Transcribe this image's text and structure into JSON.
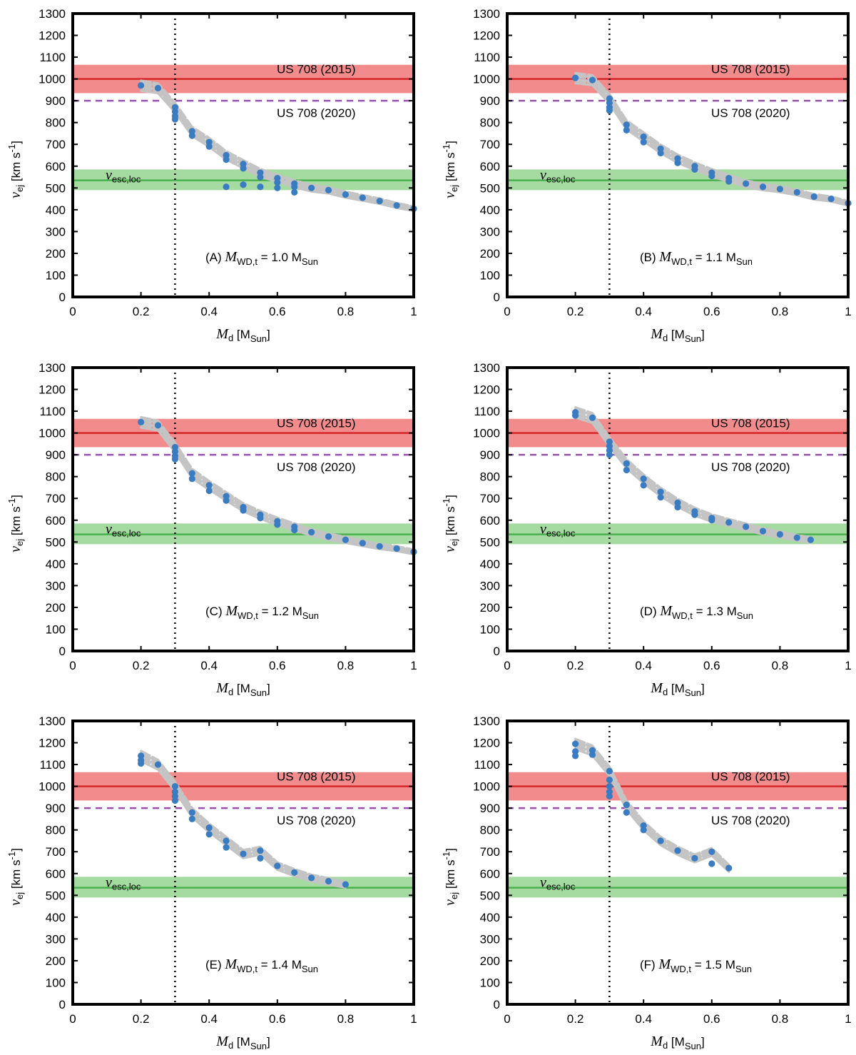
{
  "figure": {
    "xlabel": {
      "symbol": "M",
      "sub": "d",
      "unit": "[M",
      "unit_sub": "Sun",
      "unit_end": "]"
    },
    "ylabel": {
      "symbol": "v",
      "sub": "ej",
      "unit": "[km s",
      "unit_sup": "-1",
      "unit_end": "]"
    },
    "band_labels": {
      "us708_2015": "US 708 (2015)",
      "us708_2020": "US 708 (2020)",
      "vesc_symbol": "v",
      "vesc_sub": "esc,loc"
    },
    "colors": {
      "red_band": "#f28b8b",
      "red_line": "#d62728",
      "purple": "#9b4fb0",
      "green_band": "#a5dba0",
      "green_line": "#4caf50",
      "points": "#3a7cc2",
      "curves": "#c4c4c4"
    }
  },
  "chart_data": [
    {
      "type": "scatter",
      "panel_label": "(A)",
      "mwd_text": "= 1.0",
      "mwd_symbol": "M",
      "mwd_sub": "WD,t",
      "mwd_unit": "M",
      "mwd_unit_sub": "Sun",
      "xlim": [
        0,
        1
      ],
      "ylim": [
        0,
        1300
      ],
      "xticks": [
        "0",
        "0.2",
        "0.4",
        "0.6",
        "0.8",
        "1"
      ],
      "yticks": [
        "0",
        "100",
        "200",
        "300",
        "400",
        "500",
        "600",
        "700",
        "800",
        "900",
        "1000",
        "1100",
        "1200",
        "1300"
      ],
      "reference_lines": {
        "us708_2015": {
          "value": 1000,
          "band": [
            935,
            1065
          ]
        },
        "us708_2020": 900,
        "vesc_loc": {
          "value": 535,
          "band": [
            490,
            585
          ]
        },
        "vertical_dotted_x": 0.3
      },
      "points": [
        [
          0.2,
          970
        ],
        [
          0.25,
          958
        ],
        [
          0.3,
          870
        ],
        [
          0.3,
          850
        ],
        [
          0.3,
          830
        ],
        [
          0.3,
          815
        ],
        [
          0.35,
          760
        ],
        [
          0.35,
          740
        ],
        [
          0.4,
          710
        ],
        [
          0.4,
          690
        ],
        [
          0.45,
          650
        ],
        [
          0.45,
          630
        ],
        [
          0.5,
          610
        ],
        [
          0.5,
          590
        ],
        [
          0.55,
          570
        ],
        [
          0.55,
          550
        ],
        [
          0.6,
          545
        ],
        [
          0.6,
          525
        ],
        [
          0.65,
          520
        ],
        [
          0.65,
          505
        ],
        [
          0.7,
          500
        ],
        [
          0.75,
          490
        ],
        [
          0.8,
          470
        ],
        [
          0.85,
          455
        ],
        [
          0.9,
          440
        ],
        [
          0.95,
          420
        ],
        [
          1.0,
          405
        ],
        [
          0.45,
          505
        ],
        [
          0.5,
          515
        ],
        [
          0.55,
          505
        ],
        [
          0.6,
          500
        ],
        [
          0.65,
          480
        ]
      ]
    },
    {
      "type": "scatter",
      "panel_label": "(B)",
      "mwd_text": "= 1.1",
      "mwd_symbol": "M",
      "mwd_sub": "WD,t",
      "mwd_unit": "M",
      "mwd_unit_sub": "Sun",
      "xlim": [
        0,
        1
      ],
      "ylim": [
        0,
        1300
      ],
      "xticks": [
        "0",
        "0.2",
        "0.4",
        "0.6",
        "0.8",
        "1"
      ],
      "yticks": [
        "0",
        "100",
        "200",
        "300",
        "400",
        "500",
        "600",
        "700",
        "800",
        "900",
        "1000",
        "1100",
        "1200",
        "1300"
      ],
      "reference_lines": {
        "us708_2015": {
          "value": 1000,
          "band": [
            935,
            1065
          ]
        },
        "us708_2020": 900,
        "vesc_loc": {
          "value": 535,
          "band": [
            490,
            585
          ]
        },
        "vertical_dotted_x": 0.3
      },
      "points": [
        [
          0.2,
          1005
        ],
        [
          0.25,
          995
        ],
        [
          0.3,
          910
        ],
        [
          0.3,
          890
        ],
        [
          0.3,
          870
        ],
        [
          0.3,
          855
        ],
        [
          0.35,
          790
        ],
        [
          0.35,
          765
        ],
        [
          0.4,
          735
        ],
        [
          0.4,
          710
        ],
        [
          0.45,
          680
        ],
        [
          0.45,
          660
        ],
        [
          0.5,
          635
        ],
        [
          0.5,
          615
        ],
        [
          0.55,
          600
        ],
        [
          0.55,
          585
        ],
        [
          0.6,
          570
        ],
        [
          0.6,
          555
        ],
        [
          0.65,
          545
        ],
        [
          0.65,
          530
        ],
        [
          0.7,
          520
        ],
        [
          0.75,
          505
        ],
        [
          0.8,
          495
        ],
        [
          0.85,
          480
        ],
        [
          0.9,
          460
        ],
        [
          0.95,
          450
        ],
        [
          1.0,
          430
        ]
      ]
    },
    {
      "type": "scatter",
      "panel_label": "(C)",
      "mwd_text": "= 1.2",
      "mwd_symbol": "M",
      "mwd_sub": "WD,t",
      "mwd_unit": "M",
      "mwd_unit_sub": "Sun",
      "xlim": [
        0,
        1
      ],
      "ylim": [
        0,
        1300
      ],
      "xticks": [
        "0",
        "0.2",
        "0.4",
        "0.6",
        "0.8",
        "1"
      ],
      "yticks": [
        "0",
        "100",
        "200",
        "300",
        "400",
        "500",
        "600",
        "700",
        "800",
        "900",
        "1000",
        "1100",
        "1200",
        "1300"
      ],
      "reference_lines": {
        "us708_2015": {
          "value": 1000,
          "band": [
            935,
            1065
          ]
        },
        "us708_2020": 900,
        "vesc_loc": {
          "value": 535,
          "band": [
            490,
            585
          ]
        },
        "vertical_dotted_x": 0.3
      },
      "points": [
        [
          0.2,
          1050
        ],
        [
          0.25,
          1035
        ],
        [
          0.3,
          935
        ],
        [
          0.3,
          915
        ],
        [
          0.3,
          895
        ],
        [
          0.3,
          880
        ],
        [
          0.35,
          815
        ],
        [
          0.35,
          790
        ],
        [
          0.4,
          760
        ],
        [
          0.4,
          735
        ],
        [
          0.45,
          710
        ],
        [
          0.45,
          690
        ],
        [
          0.5,
          660
        ],
        [
          0.5,
          645
        ],
        [
          0.55,
          625
        ],
        [
          0.55,
          610
        ],
        [
          0.6,
          595
        ],
        [
          0.6,
          580
        ],
        [
          0.65,
          570
        ],
        [
          0.65,
          555
        ],
        [
          0.7,
          545
        ],
        [
          0.75,
          525
        ],
        [
          0.8,
          510
        ],
        [
          0.85,
          495
        ],
        [
          0.9,
          480
        ],
        [
          0.95,
          470
        ],
        [
          1.0,
          455
        ]
      ]
    },
    {
      "type": "scatter",
      "panel_label": "(D)",
      "mwd_text": "= 1.3",
      "mwd_symbol": "M",
      "mwd_sub": "WD,t",
      "mwd_unit": "M",
      "mwd_unit_sub": "Sun",
      "xlim": [
        0,
        1
      ],
      "ylim": [
        0,
        1300
      ],
      "xticks": [
        "0",
        "0.2",
        "0.4",
        "0.6",
        "0.8",
        "1"
      ],
      "yticks": [
        "0",
        "100",
        "200",
        "300",
        "400",
        "500",
        "600",
        "700",
        "800",
        "900",
        "1000",
        "1100",
        "1200",
        "1300"
      ],
      "reference_lines": {
        "us708_2015": {
          "value": 1000,
          "band": [
            935,
            1065
          ]
        },
        "us708_2020": 900,
        "vesc_loc": {
          "value": 535,
          "band": [
            490,
            585
          ]
        },
        "vertical_dotted_x": 0.3
      },
      "points": [
        [
          0.2,
          1095
        ],
        [
          0.2,
          1080
        ],
        [
          0.25,
          1070
        ],
        [
          0.3,
          960
        ],
        [
          0.3,
          940
        ],
        [
          0.3,
          920
        ],
        [
          0.3,
          900
        ],
        [
          0.35,
          860
        ],
        [
          0.35,
          830
        ],
        [
          0.4,
          790
        ],
        [
          0.4,
          760
        ],
        [
          0.45,
          730
        ],
        [
          0.45,
          705
        ],
        [
          0.5,
          680
        ],
        [
          0.5,
          660
        ],
        [
          0.55,
          640
        ],
        [
          0.55,
          625
        ],
        [
          0.6,
          610
        ],
        [
          0.6,
          600
        ],
        [
          0.65,
          590
        ],
        [
          0.7,
          570
        ],
        [
          0.75,
          550
        ],
        [
          0.8,
          535
        ],
        [
          0.85,
          520
        ],
        [
          0.89,
          510
        ]
      ]
    },
    {
      "type": "scatter",
      "panel_label": "(E)",
      "mwd_text": "= 1.4",
      "mwd_symbol": "M",
      "mwd_sub": "WD,t",
      "mwd_unit": "M",
      "mwd_unit_sub": "Sun",
      "xlim": [
        0,
        1
      ],
      "ylim": [
        0,
        1300
      ],
      "xticks": [
        "0",
        "0.2",
        "0.4",
        "0.6",
        "0.8",
        "1"
      ],
      "yticks": [
        "0",
        "100",
        "200",
        "300",
        "400",
        "500",
        "600",
        "700",
        "800",
        "900",
        "1000",
        "1100",
        "1200",
        "1300"
      ],
      "reference_lines": {
        "us708_2015": {
          "value": 1000,
          "band": [
            935,
            1065
          ]
        },
        "us708_2020": 900,
        "vesc_loc": {
          "value": 535,
          "band": [
            490,
            585
          ]
        },
        "vertical_dotted_x": 0.3
      },
      "points": [
        [
          0.2,
          1140
        ],
        [
          0.2,
          1120
        ],
        [
          0.2,
          1105
        ],
        [
          0.25,
          1100
        ],
        [
          0.3,
          1000
        ],
        [
          0.3,
          975
        ],
        [
          0.3,
          955
        ],
        [
          0.3,
          935
        ],
        [
          0.35,
          880
        ],
        [
          0.35,
          850
        ],
        [
          0.4,
          810
        ],
        [
          0.4,
          780
        ],
        [
          0.45,
          750
        ],
        [
          0.45,
          720
        ],
        [
          0.5,
          690
        ],
        [
          0.55,
          705
        ],
        [
          0.55,
          670
        ],
        [
          0.6,
          635
        ],
        [
          0.65,
          605
        ],
        [
          0.7,
          580
        ],
        [
          0.75,
          565
        ],
        [
          0.8,
          550
        ]
      ]
    },
    {
      "type": "scatter",
      "panel_label": "(F)",
      "mwd_text": "= 1.5",
      "mwd_symbol": "M",
      "mwd_sub": "WD,t",
      "mwd_unit": "M",
      "mwd_unit_sub": "Sun",
      "xlim": [
        0,
        1
      ],
      "ylim": [
        0,
        1300
      ],
      "xticks": [
        "0",
        "0.2",
        "0.4",
        "0.6",
        "0.8",
        "1"
      ],
      "yticks": [
        "0",
        "100",
        "200",
        "300",
        "400",
        "500",
        "600",
        "700",
        "800",
        "900",
        "1000",
        "1100",
        "1200",
        "1300"
      ],
      "reference_lines": {
        "us708_2015": {
          "value": 1000,
          "band": [
            935,
            1065
          ]
        },
        "us708_2020": 900,
        "vesc_loc": {
          "value": 535,
          "band": [
            490,
            585
          ]
        },
        "vertical_dotted_x": 0.3
      },
      "points": [
        [
          0.2,
          1195
        ],
        [
          0.2,
          1160
        ],
        [
          0.2,
          1140
        ],
        [
          0.25,
          1165
        ],
        [
          0.25,
          1145
        ],
        [
          0.3,
          1070
        ],
        [
          0.3,
          1030
        ],
        [
          0.3,
          1000
        ],
        [
          0.3,
          975
        ],
        [
          0.3,
          955
        ],
        [
          0.35,
          915
        ],
        [
          0.35,
          880
        ],
        [
          0.4,
          820
        ],
        [
          0.4,
          800
        ],
        [
          0.45,
          750
        ],
        [
          0.5,
          705
        ],
        [
          0.55,
          670
        ],
        [
          0.6,
          700
        ],
        [
          0.6,
          645
        ],
        [
          0.65,
          625
        ]
      ]
    }
  ]
}
